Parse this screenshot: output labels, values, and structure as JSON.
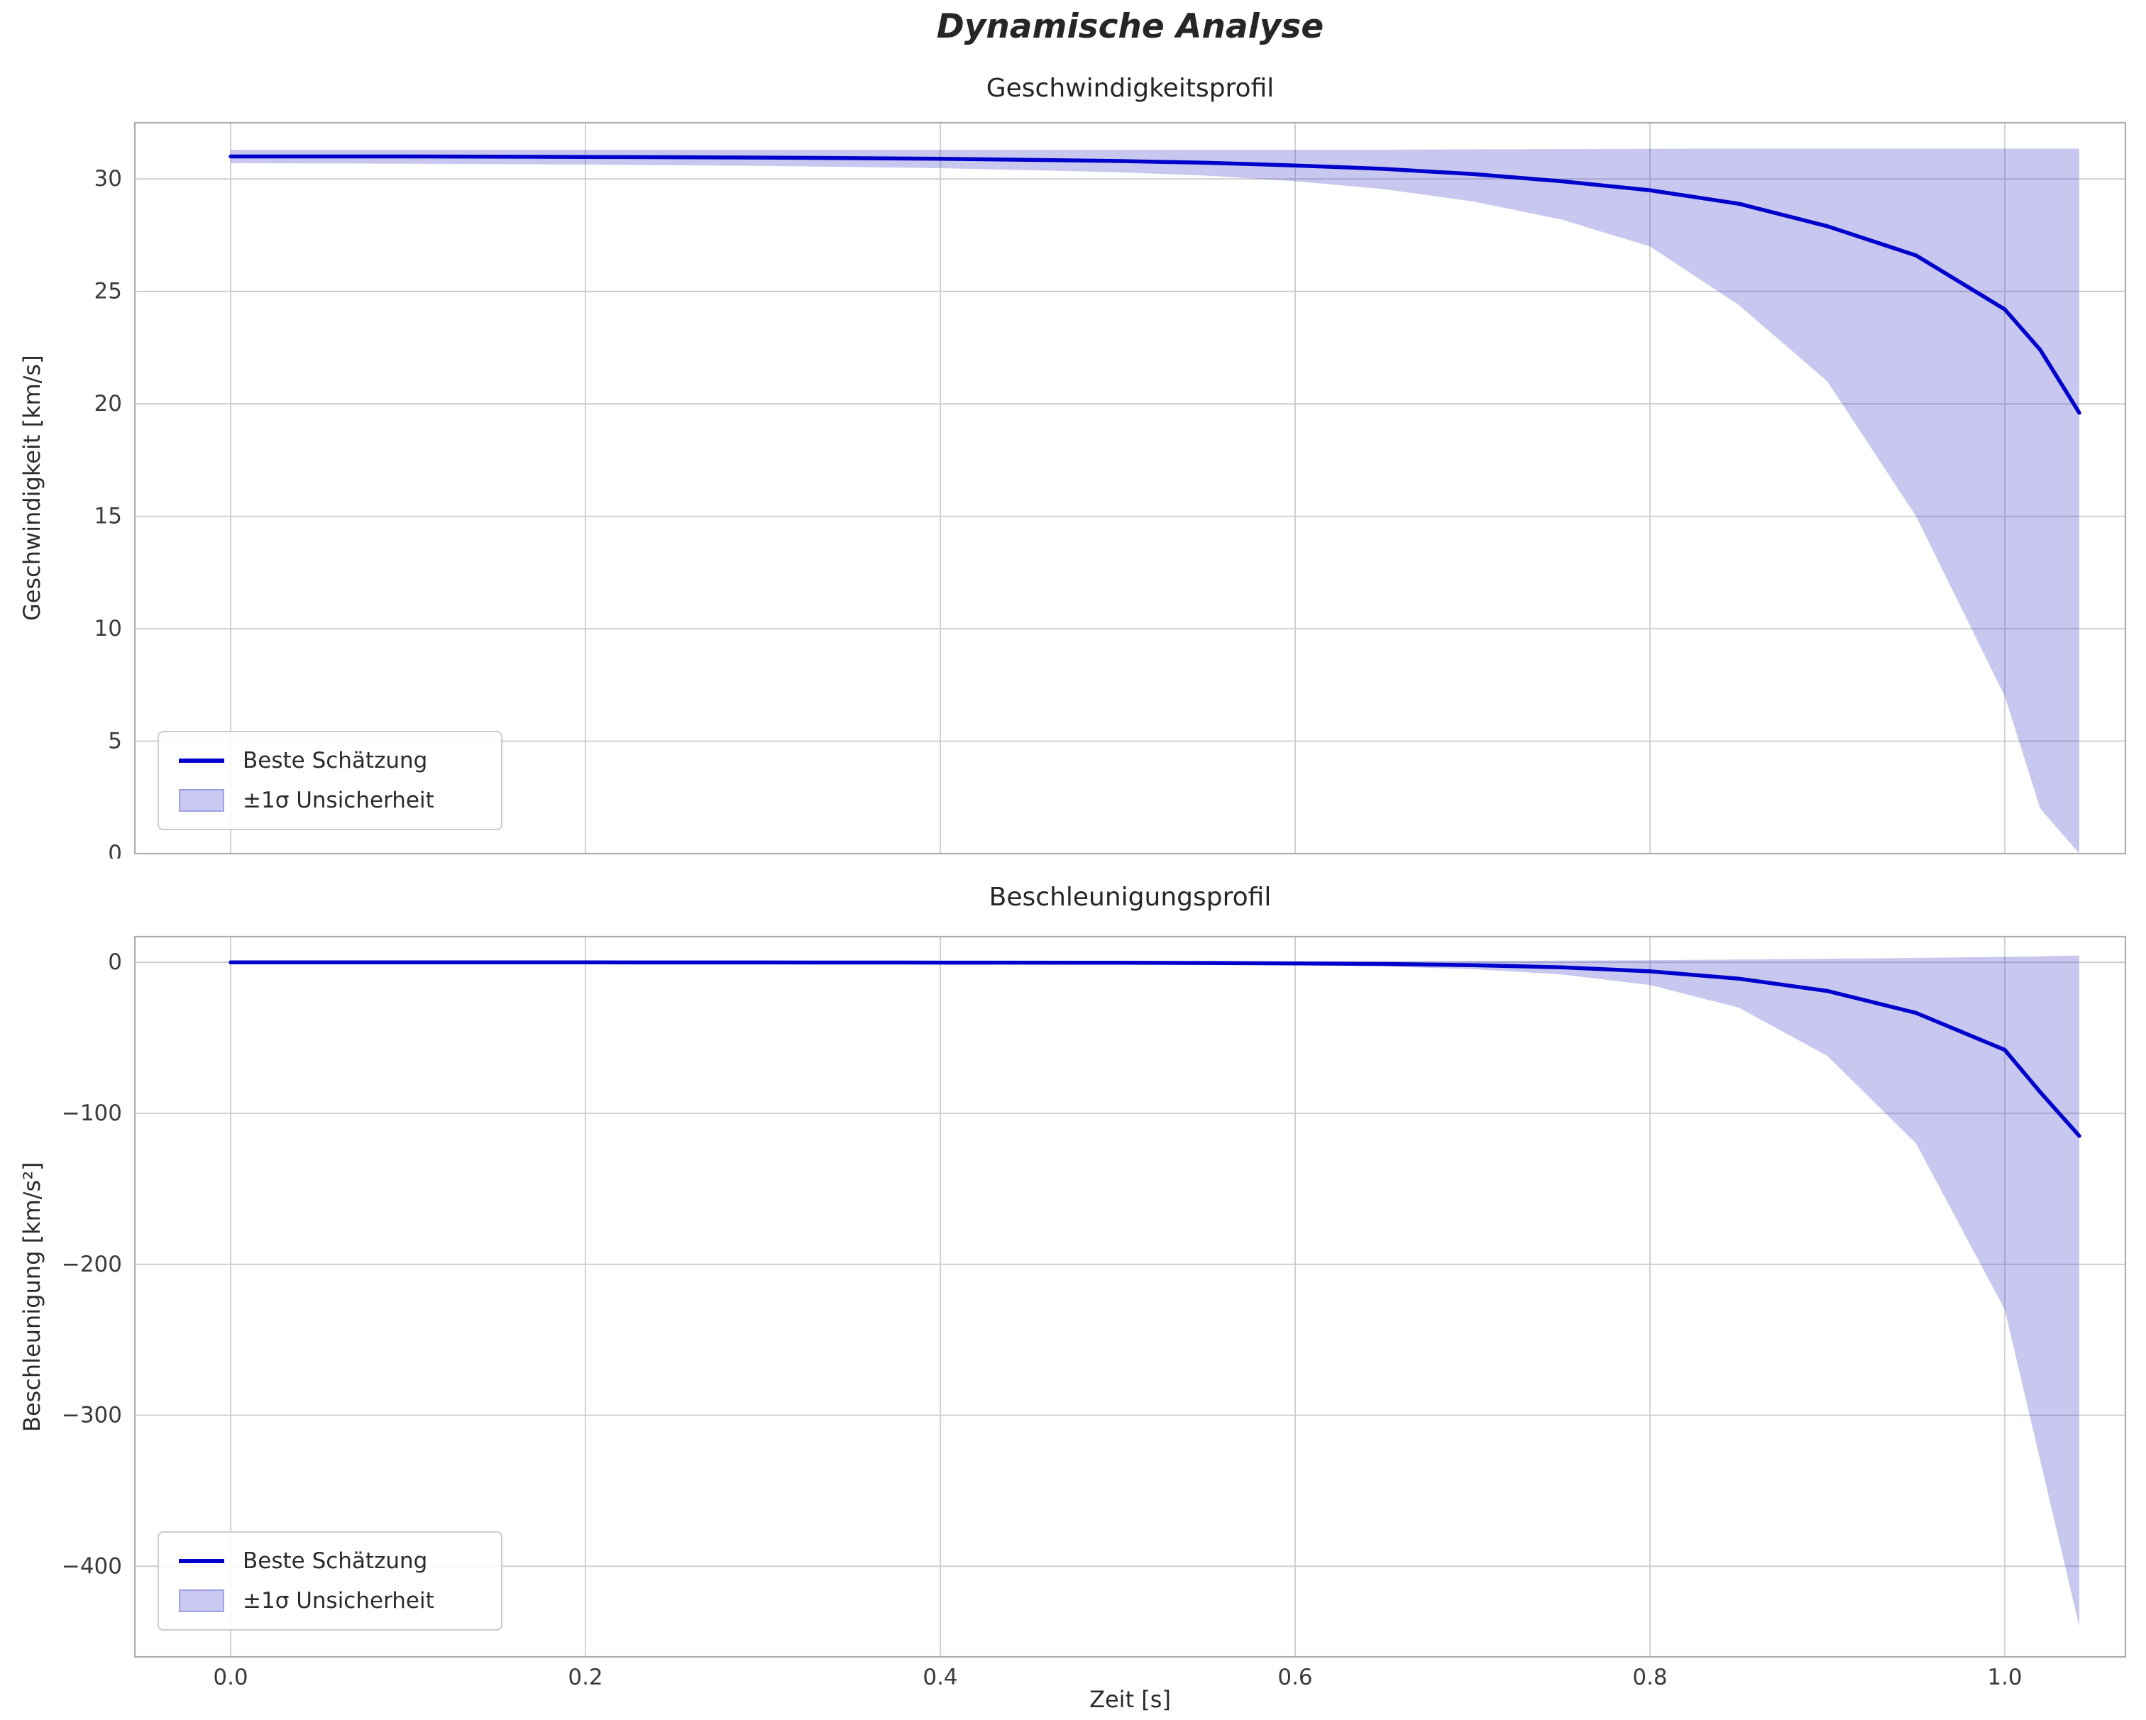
{
  "figure": {
    "title": "Dynamische Analyse",
    "xlabel": "Zeit [s]"
  },
  "colors": {
    "line": "#0000cc",
    "band_fill": "#4444cc",
    "band_alpha": 0.3,
    "grid": "#cccccc",
    "frame": "#adadad",
    "tick_text": "#3a3a3a"
  },
  "legend": {
    "line_label": "Beste Schätzung",
    "band_label": "±1σ Unsicherheit"
  },
  "chart_data": [
    {
      "type": "line",
      "title": "Geschwindigkeitsprofil",
      "ylabel": "Geschwindigkeit [km/s]",
      "xlim": [
        -0.054,
        1.068
      ],
      "ylim": [
        0,
        32.5
      ],
      "xticks": [
        0.0,
        0.2,
        0.4,
        0.6,
        0.8,
        1.0
      ],
      "xtick_labels": [
        "0.0",
        "0.2",
        "0.4",
        "0.6",
        "0.8",
        "1.0"
      ],
      "show_xtick_labels": false,
      "yticks": [
        0,
        5,
        10,
        15,
        20,
        25,
        30
      ],
      "ytick_labels": [
        "0",
        "5",
        "10",
        "15",
        "20",
        "25",
        "30"
      ],
      "x": [
        0.0,
        0.1,
        0.2,
        0.3,
        0.4,
        0.5,
        0.55,
        0.6,
        0.65,
        0.7,
        0.75,
        0.8,
        0.85,
        0.9,
        0.95,
        1.0,
        1.02,
        1.042
      ],
      "best": [
        31.0,
        31.0,
        30.98,
        30.95,
        30.9,
        30.8,
        30.72,
        30.6,
        30.45,
        30.22,
        29.9,
        29.5,
        28.9,
        27.9,
        26.6,
        24.2,
        22.4,
        19.6
      ],
      "upper": [
        31.3,
        31.3,
        31.3,
        31.3,
        31.3,
        31.3,
        31.3,
        31.3,
        31.3,
        31.32,
        31.33,
        31.34,
        31.35,
        31.35,
        31.35,
        31.35,
        31.35,
        31.35
      ],
      "lower": [
        30.7,
        30.68,
        30.64,
        30.58,
        30.48,
        30.3,
        30.15,
        29.9,
        29.55,
        29.0,
        28.2,
        27.0,
        24.4,
        21.0,
        15.0,
        7.0,
        2.0,
        0.0
      ],
      "series_labels": [
        "Beste Schätzung",
        "±1σ Unsicherheit"
      ]
    },
    {
      "type": "line",
      "title": "Beschleunigungsprofil",
      "ylabel": "Beschleunigung [km/s²]",
      "xlim": [
        -0.054,
        1.068
      ],
      "ylim": [
        -460,
        17
      ],
      "xticks": [
        0.0,
        0.2,
        0.4,
        0.6,
        0.8,
        1.0
      ],
      "xtick_labels": [
        "0.0",
        "0.2",
        "0.4",
        "0.6",
        "0.8",
        "1.0"
      ],
      "show_xtick_labels": true,
      "yticks": [
        0,
        -100,
        -200,
        -300,
        -400
      ],
      "ytick_labels": [
        "0",
        "−100",
        "−200",
        "−300",
        "−400"
      ],
      "x": [
        0.0,
        0.1,
        0.2,
        0.3,
        0.4,
        0.5,
        0.55,
        0.6,
        0.65,
        0.7,
        0.75,
        0.8,
        0.85,
        0.9,
        0.95,
        1.0,
        1.02,
        1.042
      ],
      "best": [
        -0.05,
        -0.06,
        -0.08,
        -0.12,
        -0.18,
        -0.3,
        -0.45,
        -0.7,
        -1.1,
        -1.9,
        -3.3,
        -6.0,
        -10.8,
        -19.0,
        -33.5,
        -58.0,
        -86.0,
        -115.0
      ],
      "upper": [
        0.3,
        0.3,
        0.3,
        0.35,
        0.4,
        0.5,
        0.55,
        0.6,
        0.7,
        0.9,
        1.1,
        1.4,
        1.8,
        2.3,
        2.9,
        3.6,
        4.0,
        4.5
      ],
      "lower": [
        -0.4,
        -0.45,
        -0.5,
        -0.6,
        -0.75,
        -1.0,
        -1.3,
        -1.8,
        -2.8,
        -4.5,
        -8.0,
        -15.0,
        -30.0,
        -62.0,
        -120.0,
        -230.0,
        -330.0,
        -440.0
      ],
      "series_labels": [
        "Beste Schätzung",
        "±1σ Unsicherheit"
      ]
    }
  ]
}
